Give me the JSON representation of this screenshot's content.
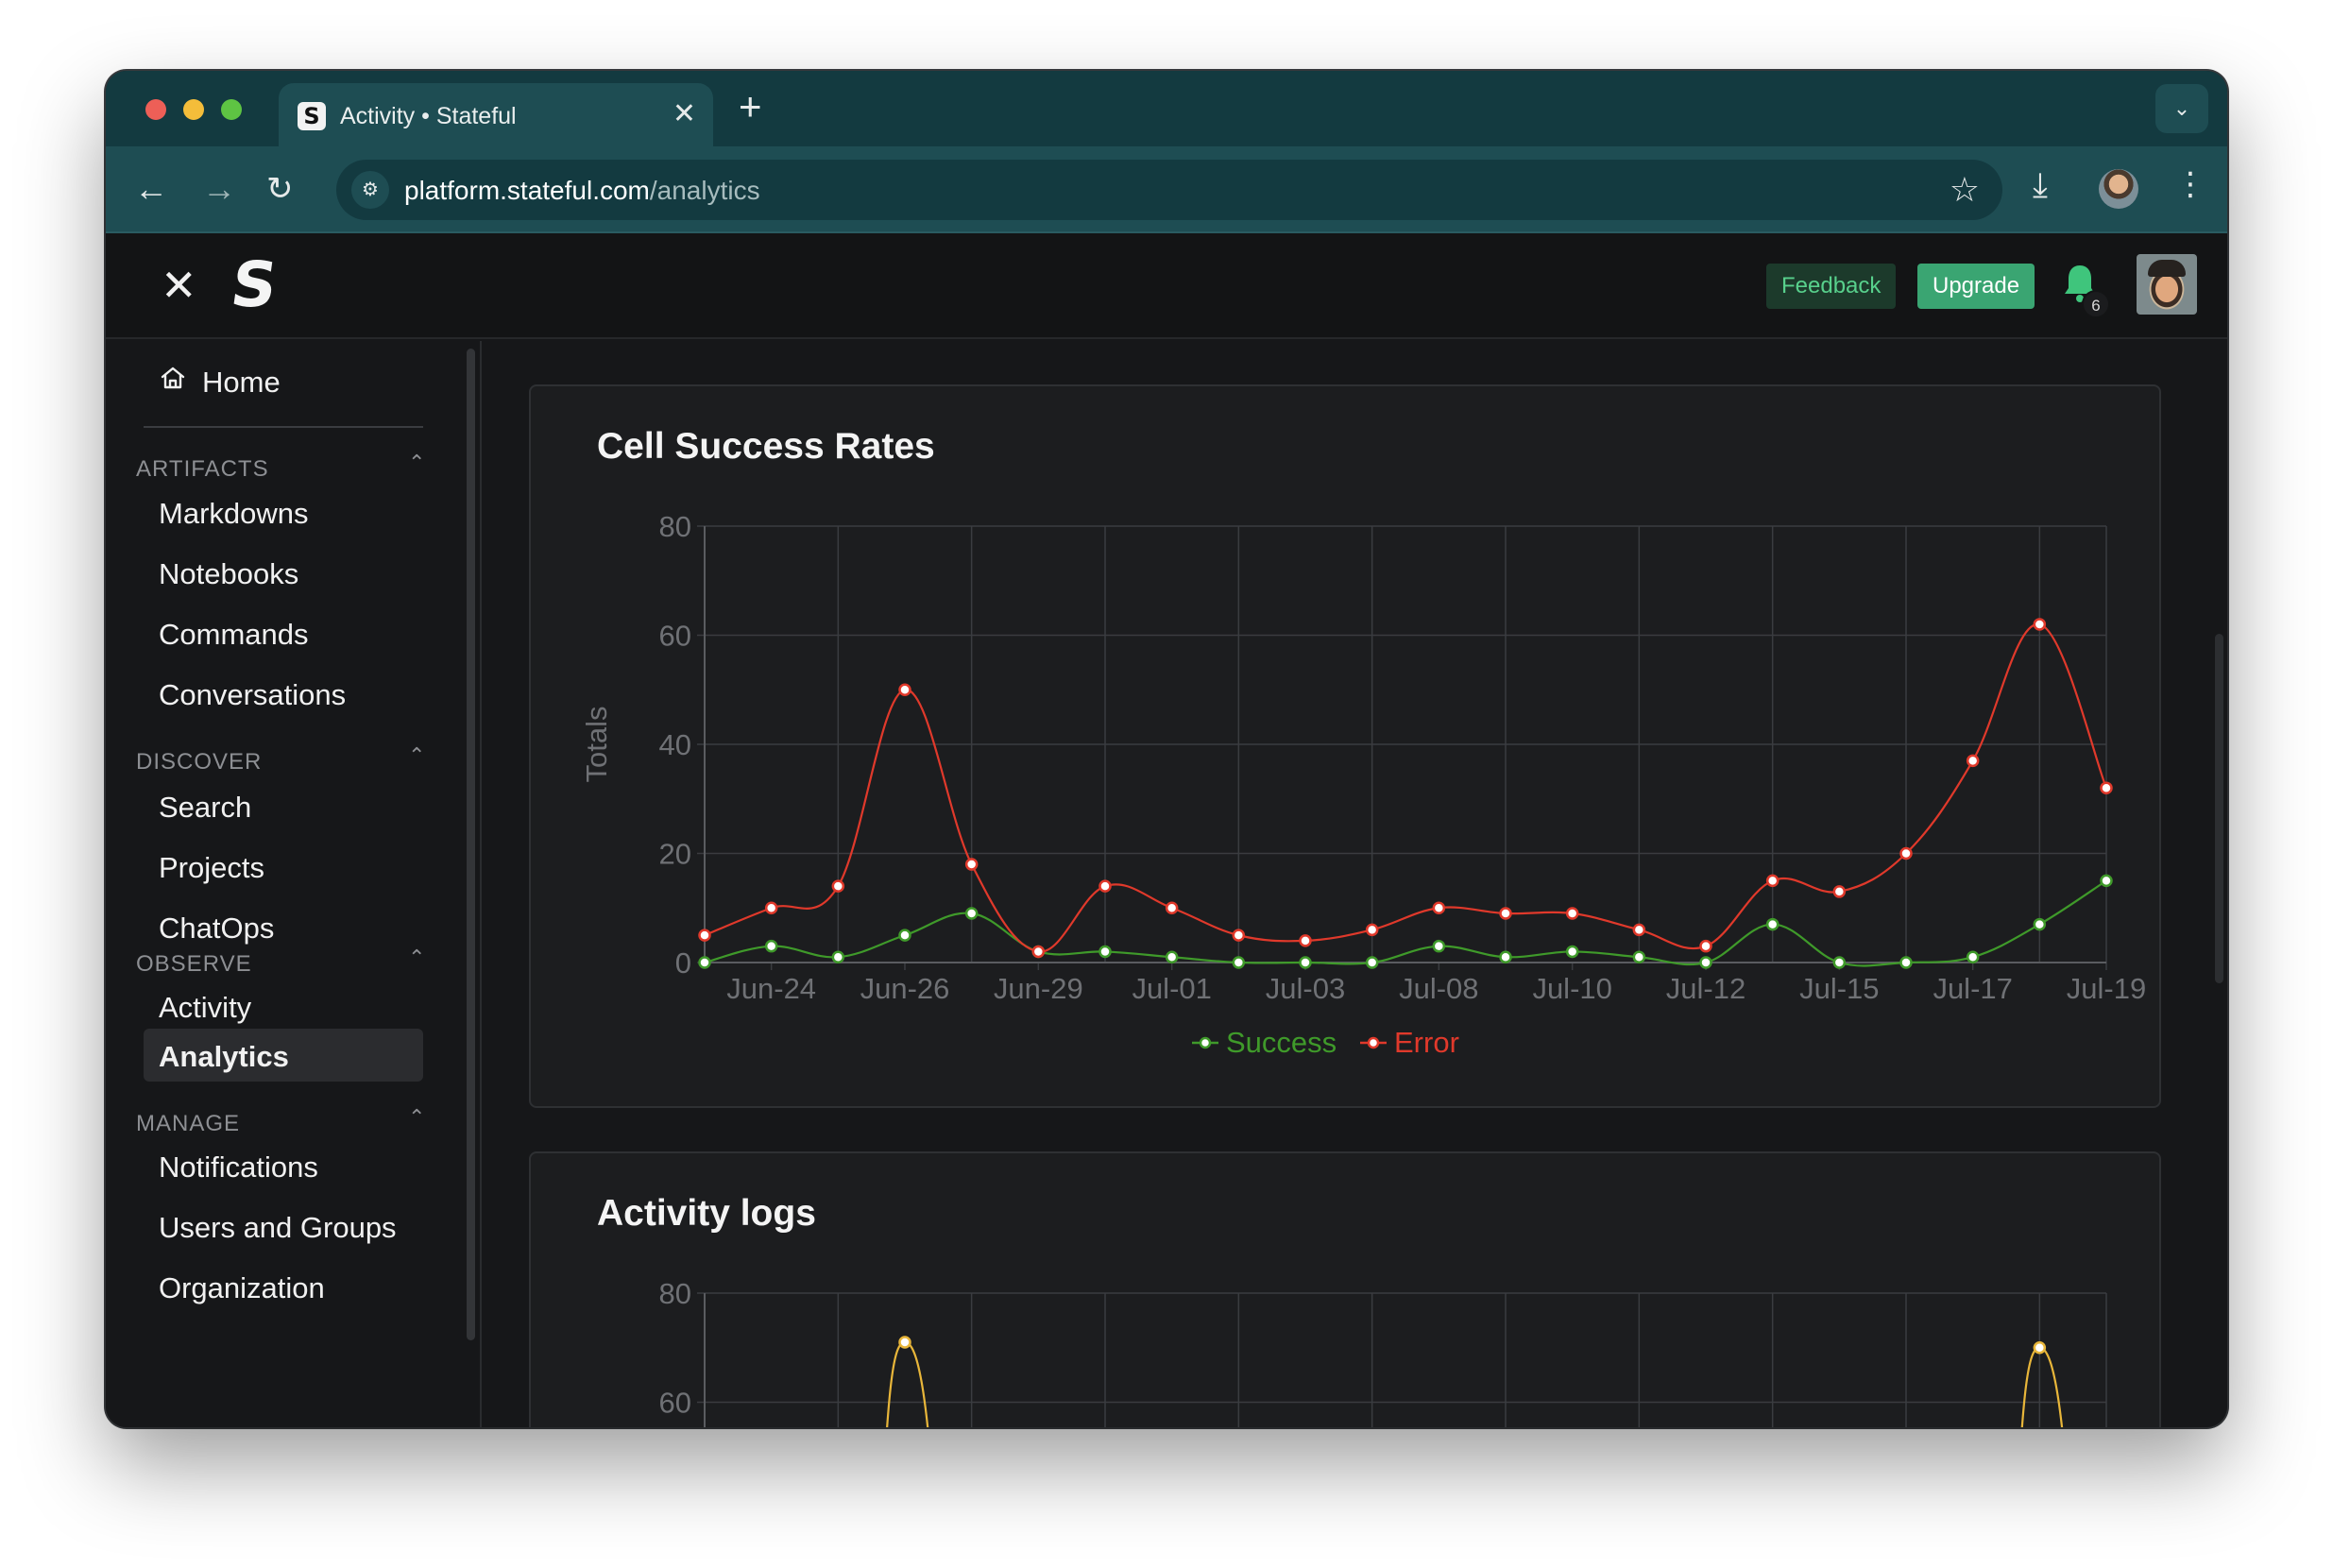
{
  "browser": {
    "tab_title": "Activity • Stateful",
    "favicon_letter": "S",
    "url_host": "platform.stateful.com",
    "url_path": "/analytics"
  },
  "header": {
    "logo_letter": "S",
    "feedback_label": "Feedback",
    "upgrade_label": "Upgrade",
    "notification_count": "6"
  },
  "sidebar": {
    "home_label": "Home",
    "sections": [
      {
        "title": "ARTIFACTS",
        "items": [
          "Markdowns",
          "Notebooks",
          "Commands",
          "Conversations"
        ]
      },
      {
        "title": "DISCOVER",
        "items": [
          "Search",
          "Projects",
          "ChatOps"
        ]
      },
      {
        "title": "OBSERVE",
        "items": [
          "Activity",
          "Analytics"
        ]
      },
      {
        "title": "MANAGE",
        "items": [
          "Notifications",
          "Users and Groups",
          "Organization"
        ]
      }
    ],
    "active_item": "Analytics"
  },
  "cards": {
    "success_rates_title": "Cell Success Rates",
    "activity_logs_title": "Activity logs"
  },
  "colors": {
    "success": "#3f9a2a",
    "error": "#e0392b",
    "activity": "#e8b63a",
    "grid": "#3a3c40"
  },
  "chart_data": [
    {
      "type": "line",
      "title": "Cell Success Rates",
      "xlabel": "",
      "ylabel": "Totals",
      "ylim": [
        0,
        80
      ],
      "yticks": [
        0,
        20,
        40,
        60,
        80
      ],
      "x_tick_labels": [
        "Jun-24",
        "Jun-26",
        "Jun-29",
        "Jul-01",
        "Jul-03",
        "Jul-08",
        "Jul-10",
        "Jul-12",
        "Jul-15",
        "Jul-17",
        "Jul-19"
      ],
      "x_points": 22,
      "series": [
        {
          "name": "Success",
          "values": [
            0,
            3,
            1,
            5,
            9,
            2,
            2,
            1,
            0,
            0,
            0,
            3,
            1,
            2,
            1,
            0,
            7,
            0,
            0,
            1,
            7,
            15
          ]
        },
        {
          "name": "Error",
          "values": [
            5,
            10,
            14,
            50,
            18,
            2,
            14,
            10,
            5,
            4,
            6,
            10,
            9,
            9,
            6,
            3,
            15,
            13,
            20,
            37,
            62,
            32
          ]
        }
      ],
      "legend_position": "bottom-center"
    },
    {
      "type": "line",
      "title": "Activity logs",
      "ylim": [
        0,
        80
      ],
      "visible_yticks": [
        60,
        80
      ],
      "series": [
        {
          "name": "Activity",
          "visible_peaks": [
            {
              "index": 3,
              "value": 71
            },
            {
              "index": 20,
              "value": 70
            }
          ]
        }
      ]
    }
  ]
}
